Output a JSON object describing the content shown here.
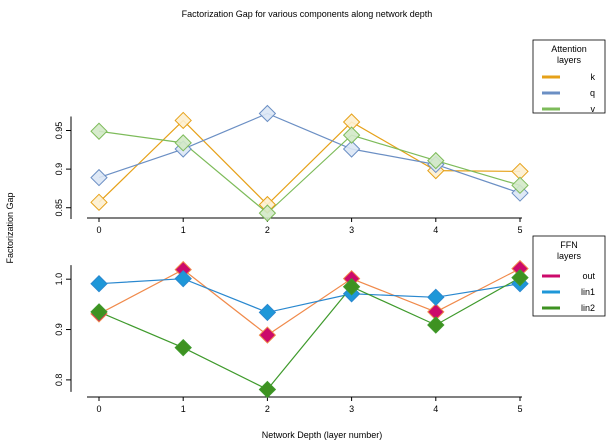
{
  "title": "Factorization Gap for various components along network depth",
  "ylabel": "Factorization Gap",
  "xlabel": "Network Depth (layer number)",
  "chart_data": [
    {
      "type": "line",
      "x": [
        0,
        1,
        2,
        3,
        4,
        5
      ],
      "xticks": [
        "0",
        "1",
        "2",
        "3",
        "4",
        "5"
      ],
      "ylim": [
        0.838,
        1.005
      ],
      "yticks": [
        0.85,
        0.9,
        0.95
      ],
      "ytick_labels": [
        "0.85",
        "0.9",
        "0.95"
      ],
      "legend": {
        "title_lines": [
          "Attention",
          "layers"
        ],
        "placement": "top-right, outside plot"
      },
      "series": [
        {
          "name": "k",
          "color": "#e6a118",
          "marker_fill": "#fdf0d0",
          "values": [
            0.857,
            0.963,
            0.854,
            0.961,
            0.898,
            0.897
          ]
        },
        {
          "name": "q",
          "color": "#6b8fc4",
          "marker_fill": "#dce7f5",
          "values": [
            0.889,
            0.926,
            0.972,
            0.926,
            0.906,
            0.869
          ]
        },
        {
          "name": "v",
          "color": "#7dbb5a",
          "marker_fill": "#d3e9c8",
          "values": [
            0.949,
            0.934,
            0.843,
            0.944,
            0.911,
            0.879
          ]
        }
      ]
    },
    {
      "type": "line",
      "x": [
        0,
        1,
        2,
        3,
        4,
        5
      ],
      "xticks": [
        "0",
        "1",
        "2",
        "3",
        "4",
        "5"
      ],
      "ylim": [
        0.77,
        1.05
      ],
      "yticks": [
        0.8,
        0.9,
        1.0
      ],
      "ytick_labels": [
        "0.8",
        "0.9",
        "1.0"
      ],
      "legend": {
        "title_lines": [
          "FFN",
          "layers"
        ],
        "placement": "right, outside plot"
      },
      "series": [
        {
          "name": "out",
          "color": "#f08a4b",
          "marker_fill": "#cc0a6b",
          "values": [
            0.931,
            1.019,
            0.889,
            1.001,
            0.935,
            1.021
          ]
        },
        {
          "name": "lin1",
          "color": "#2a88cf",
          "marker_fill": "#1e97d8",
          "values": [
            0.991,
            1.001,
            0.934,
            0.971,
            0.964,
            0.991
          ]
        },
        {
          "name": "lin2",
          "color": "#3f9a2c",
          "marker_fill": "#3e9221",
          "values": [
            0.935,
            0.864,
            0.781,
            0.985,
            0.909,
            1.003
          ]
        }
      ]
    }
  ]
}
